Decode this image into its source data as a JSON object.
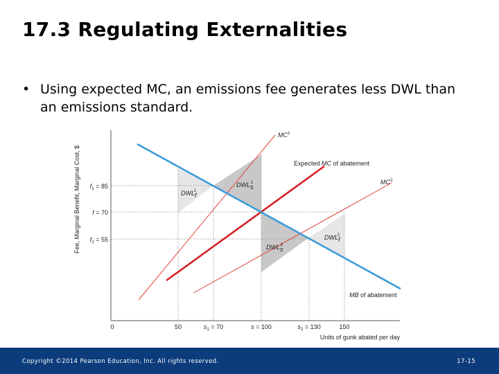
{
  "slide": {
    "title": "17.3  Regulating Externalities",
    "bullet_marker": "•",
    "bullet": "Using expected MC, an emissions fee generates less DWL than an emissions standard."
  },
  "diagram": {
    "y_axis_label": "Fee, Marginal Benefit, Marginal Cost, $",
    "x_axis_label": "Units of gunk abated per day",
    "y_ticks": [
      {
        "sym": "f",
        "sub": "1",
        "text": " = 85"
      },
      {
        "sym": "f",
        "sub": "",
        "text": " = 70"
      },
      {
        "sym": "f",
        "sub": "2",
        "text": " = 55"
      }
    ],
    "x_ticks": [
      {
        "sym": "",
        "sub": "",
        "text": "0"
      },
      {
        "sym": "",
        "sub": "",
        "text": "50"
      },
      {
        "sym": "s",
        "sub": "1",
        "text": " = 70"
      },
      {
        "sym": "s",
        "sub": "",
        "text": " = 100"
      },
      {
        "sym": "s",
        "sub": "2",
        "text": " = 130"
      },
      {
        "sym": "",
        "sub": "",
        "text": "150"
      }
    ],
    "curves": {
      "mc1": {
        "sym": "MC",
        "sup": "1"
      },
      "mc2": {
        "sym": "MC",
        "sup": "2"
      },
      "expected_mc": {
        "pre": "Expected ",
        "sym": "MC",
        "post": " of abatement"
      },
      "mb": {
        "sym": "MB",
        "post": " of abatement"
      }
    },
    "dwl_labels": [
      {
        "sym": "DWL",
        "sub": "f",
        "sup": "1"
      },
      {
        "sym": "DWL",
        "sub": "s",
        "sup": "1"
      },
      {
        "sym": "DWL",
        "sub": "s",
        "sup": "2"
      },
      {
        "sym": "DWL",
        "sub": "f",
        "sup": "2"
      }
    ],
    "colors": {
      "mb": "#3a9ad9",
      "expected_mc": "#d42027",
      "mc_bounds": "#e0413a",
      "shade": "#c8c8c8",
      "shade_light": "#e6e6e6"
    }
  },
  "footer": {
    "copyright": "Copyright ©2014 Pearson Education, Inc. All rights reserved.",
    "page": "17-15"
  }
}
